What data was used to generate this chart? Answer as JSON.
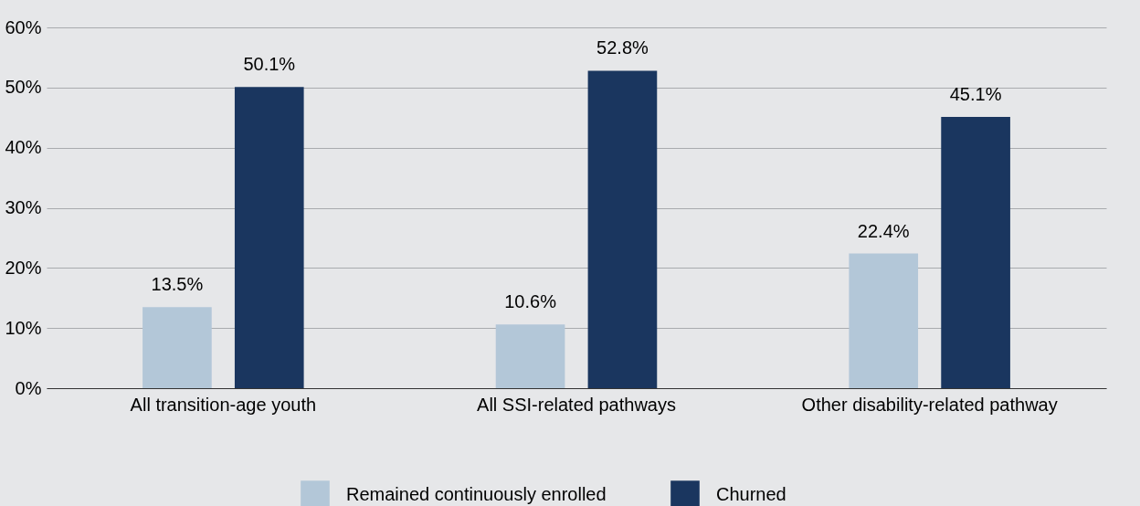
{
  "chart_data": {
    "type": "bar",
    "categories": [
      "All transition-age youth",
      "All SSI-related pathways",
      "Other disability-related pathway"
    ],
    "series": [
      {
        "name": "Remained continuously enrolled",
        "color": "#b3c7d8",
        "values": [
          13.5,
          10.6,
          22.4
        ],
        "value_labels": [
          "13.5%",
          "10.6%",
          "22.4%"
        ]
      },
      {
        "name": "Churned",
        "color": "#1a365f",
        "values": [
          50.1,
          52.8,
          45.1
        ],
        "value_labels": [
          "50.1%",
          "52.8%",
          "45.1%"
        ]
      }
    ],
    "ylim": [
      0,
      60
    ],
    "yticks": [
      {
        "value": 0,
        "label": "0%"
      },
      {
        "value": 10,
        "label": "10%"
      },
      {
        "value": 20,
        "label": "20%"
      },
      {
        "value": 30,
        "label": "30%"
      },
      {
        "value": 40,
        "label": "40%"
      },
      {
        "value": 50,
        "label": "50%"
      },
      {
        "value": 60,
        "label": "60%"
      }
    ],
    "grid": "y",
    "legend": "bottom"
  }
}
